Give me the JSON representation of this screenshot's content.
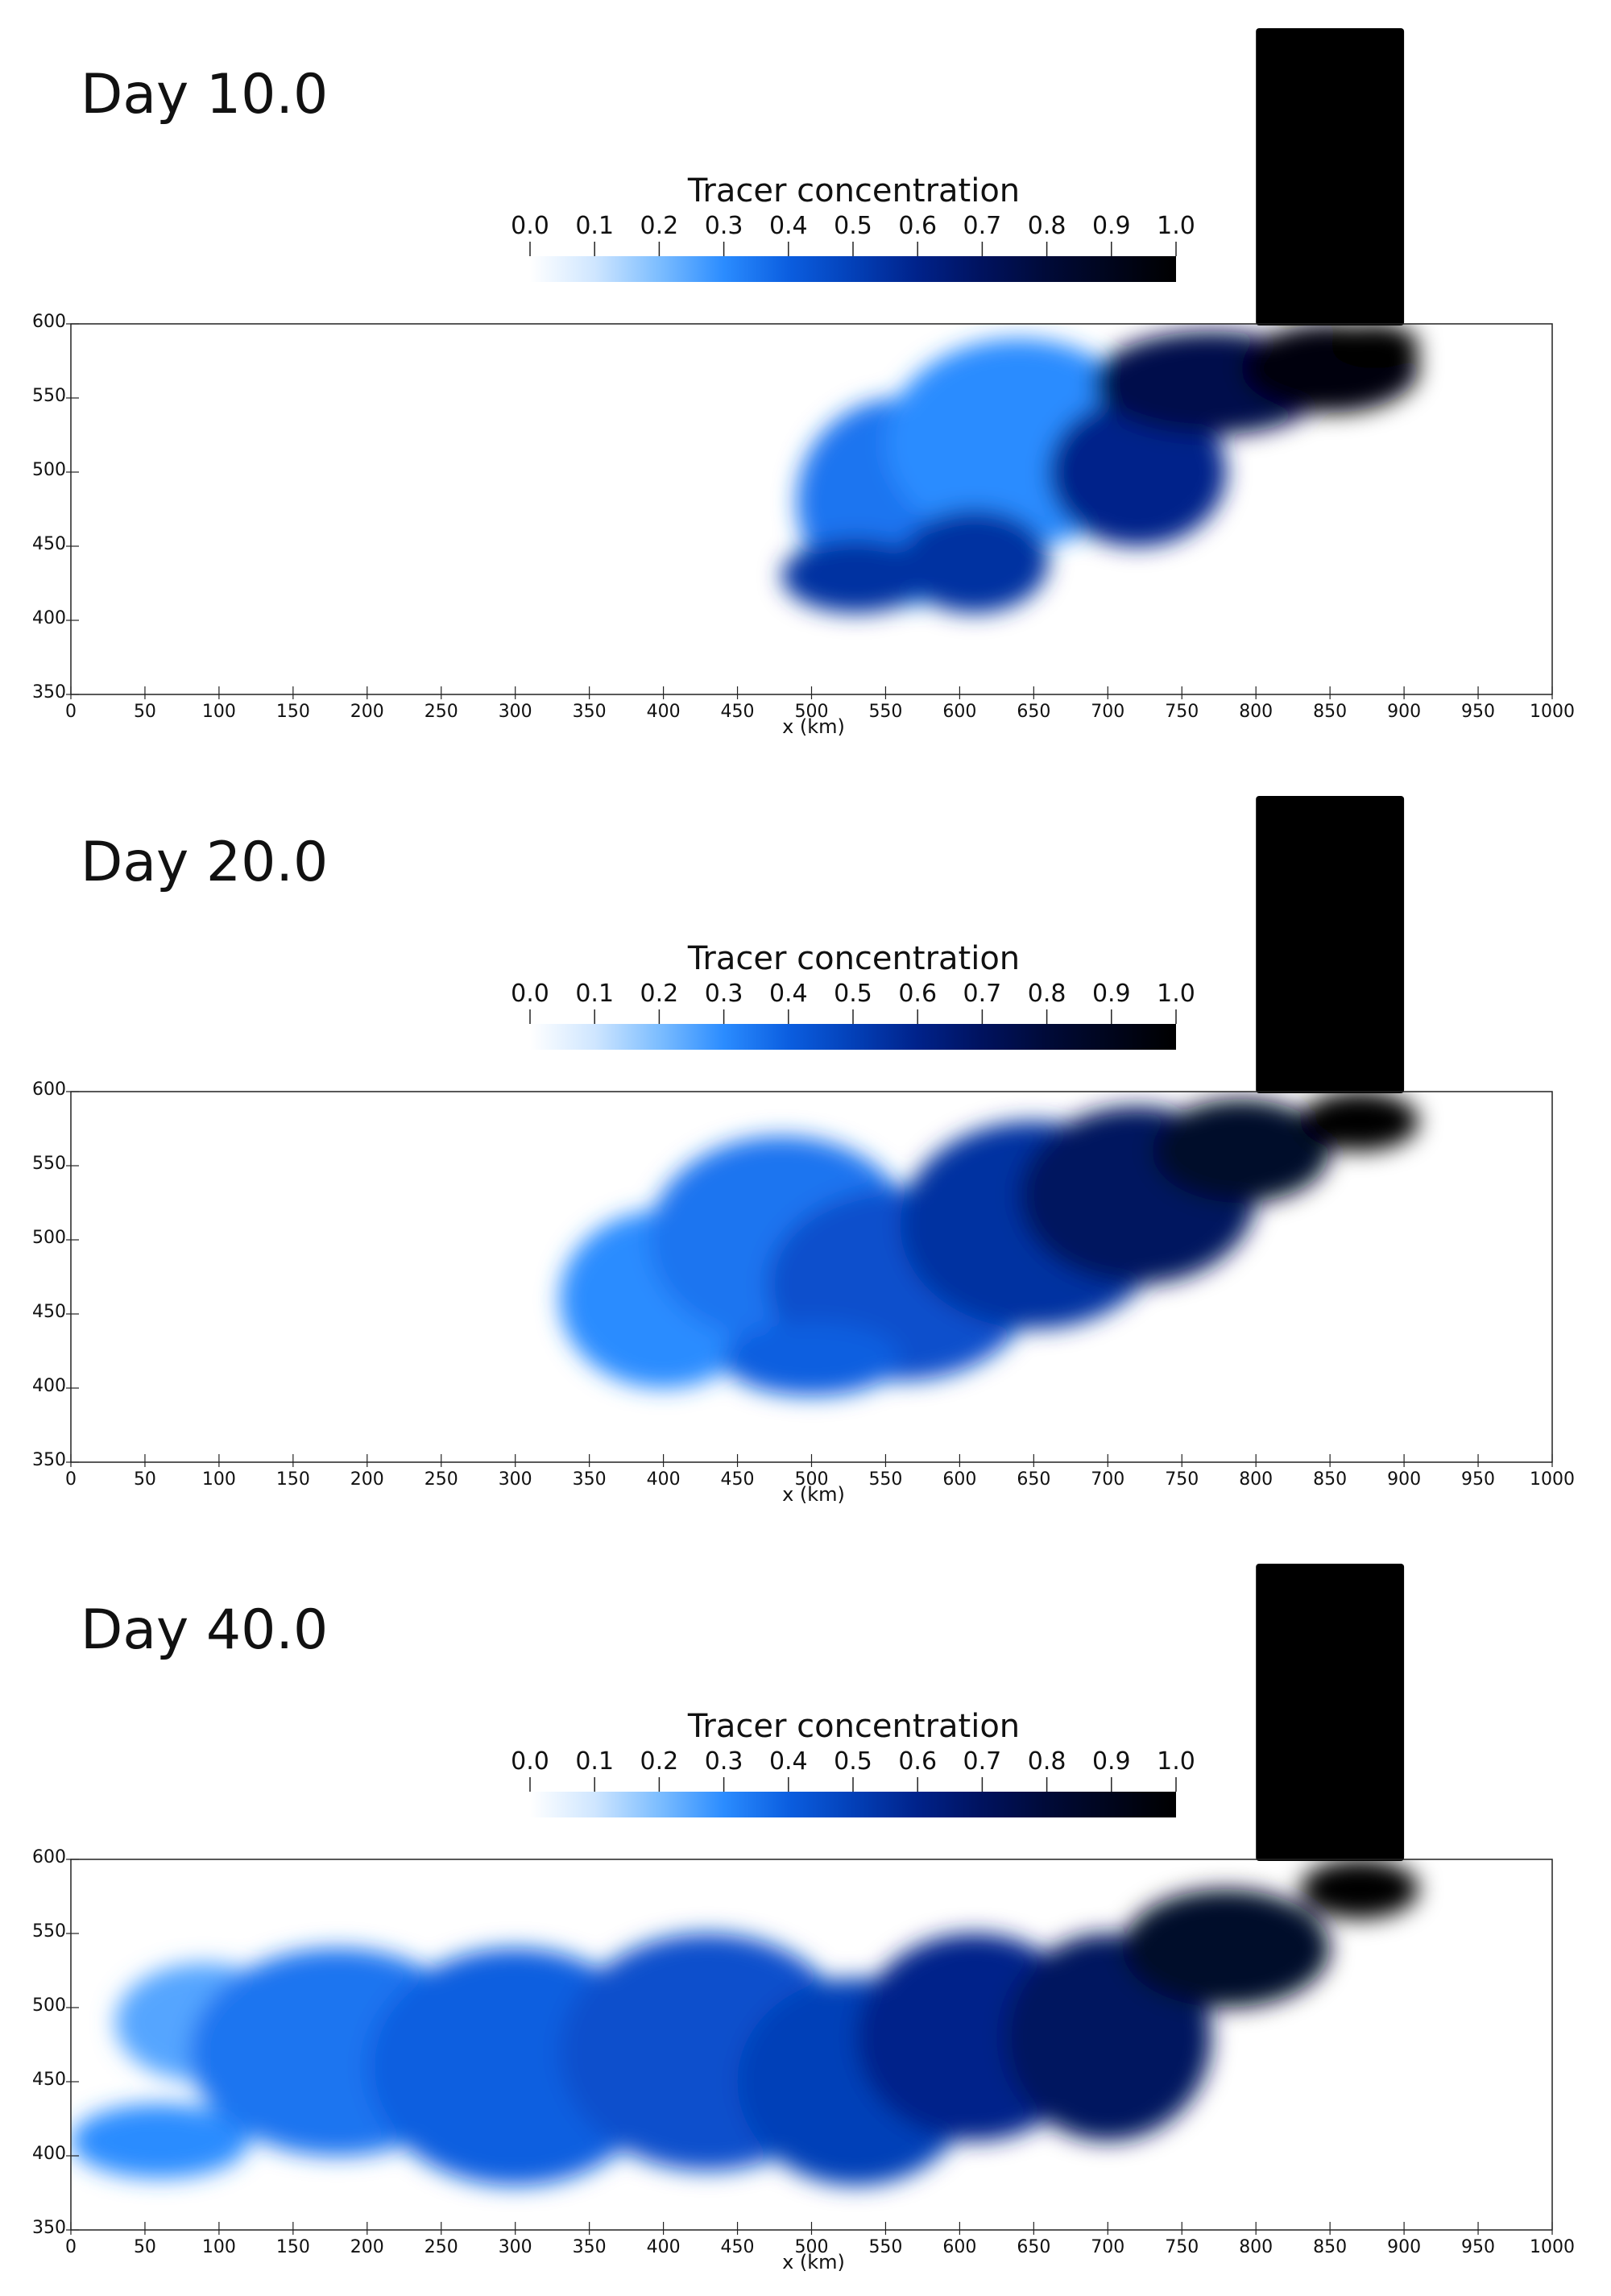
{
  "chart_data": [
    {
      "type": "heatmap",
      "title": "Day 10.0",
      "colorbar": {
        "title": "Tracer concentration",
        "range": [
          0.0,
          1.0
        ],
        "ticks": [
          "0.0",
          "0.1",
          "0.2",
          "0.3",
          "0.4",
          "0.5",
          "0.6",
          "0.7",
          "0.8",
          "0.9",
          "1.0"
        ],
        "colors": [
          "#ffffff",
          "#cfe6ff",
          "#7cbdff",
          "#2b8cff",
          "#0b5ee0",
          "#0340b8",
          "#00228a",
          "#00125e",
          "#000a38",
          "#00051c",
          "#000000"
        ]
      },
      "xlabel": "x (km)",
      "xlim": [
        0,
        1000
      ],
      "ylim": [
        350,
        600
      ],
      "xticks": [
        "0",
        "50",
        "100",
        "150",
        "200",
        "250",
        "300",
        "350",
        "400",
        "450",
        "500",
        "550",
        "600",
        "650",
        "700",
        "750",
        "800",
        "850",
        "900",
        "950",
        "1000"
      ],
      "yticks": [
        "350",
        "400",
        "450",
        "500",
        "550",
        "600"
      ],
      "inlet_channel": {
        "x": [
          800,
          900
        ],
        "y": [
          600,
          800
        ],
        "value": 1.0
      },
      "plume_blobs": [
        {
          "x": 560,
          "y": 480,
          "rx": 70,
          "ry": 70,
          "value": 0.35
        },
        {
          "x": 640,
          "y": 520,
          "rx": 90,
          "ry": 70,
          "value": 0.3
        },
        {
          "x": 610,
          "y": 440,
          "rx": 50,
          "ry": 35,
          "value": 0.55
        },
        {
          "x": 530,
          "y": 430,
          "rx": 50,
          "ry": 25,
          "value": 0.55
        },
        {
          "x": 720,
          "y": 500,
          "rx": 60,
          "ry": 50,
          "value": 0.6
        },
        {
          "x": 770,
          "y": 560,
          "rx": 80,
          "ry": 35,
          "value": 0.75
        },
        {
          "x": 850,
          "y": 570,
          "rx": 60,
          "ry": 30,
          "value": 0.95
        },
        {
          "x": 880,
          "y": 585,
          "rx": 30,
          "ry": 15,
          "value": 1.0
        }
      ]
    },
    {
      "type": "heatmap",
      "title": "Day 20.0",
      "colorbar": {
        "title": "Tracer concentration",
        "range": [
          0.0,
          1.0
        ],
        "ticks": [
          "0.0",
          "0.1",
          "0.2",
          "0.3",
          "0.4",
          "0.5",
          "0.6",
          "0.7",
          "0.8",
          "0.9",
          "1.0"
        ],
        "colors": [
          "#ffffff",
          "#cfe6ff",
          "#7cbdff",
          "#2b8cff",
          "#0b5ee0",
          "#0340b8",
          "#00228a",
          "#00125e",
          "#000a38",
          "#00051c",
          "#000000"
        ]
      },
      "xlabel": "x (km)",
      "xlim": [
        0,
        1000
      ],
      "ylim": [
        350,
        600
      ],
      "xticks": [
        "0",
        "50",
        "100",
        "150",
        "200",
        "250",
        "300",
        "350",
        "400",
        "450",
        "500",
        "550",
        "600",
        "650",
        "700",
        "750",
        "800",
        "850",
        "900",
        "950",
        "1000"
      ],
      "yticks": [
        "350",
        "400",
        "450",
        "500",
        "550",
        "600"
      ],
      "inlet_channel": {
        "x": [
          800,
          900
        ],
        "y": [
          600,
          800
        ],
        "value": 1.0
      },
      "plume_blobs": [
        {
          "x": 400,
          "y": 460,
          "rx": 70,
          "ry": 60,
          "value": 0.3
        },
        {
          "x": 480,
          "y": 500,
          "rx": 90,
          "ry": 70,
          "value": 0.35
        },
        {
          "x": 560,
          "y": 470,
          "rx": 90,
          "ry": 65,
          "value": 0.45
        },
        {
          "x": 500,
          "y": 420,
          "rx": 60,
          "ry": 25,
          "value": 0.4
        },
        {
          "x": 650,
          "y": 510,
          "rx": 90,
          "ry": 70,
          "value": 0.55
        },
        {
          "x": 720,
          "y": 530,
          "rx": 80,
          "ry": 60,
          "value": 0.7
        },
        {
          "x": 790,
          "y": 560,
          "rx": 60,
          "ry": 35,
          "value": 0.85
        },
        {
          "x": 870,
          "y": 580,
          "rx": 40,
          "ry": 20,
          "value": 1.0
        }
      ]
    },
    {
      "type": "heatmap",
      "title": "Day 40.0",
      "colorbar": {
        "title": "Tracer concentration",
        "range": [
          0.0,
          1.0
        ],
        "ticks": [
          "0.0",
          "0.1",
          "0.2",
          "0.3",
          "0.4",
          "0.5",
          "0.6",
          "0.7",
          "0.8",
          "0.9",
          "1.0"
        ],
        "colors": [
          "#ffffff",
          "#cfe6ff",
          "#7cbdff",
          "#2b8cff",
          "#0b5ee0",
          "#0340b8",
          "#00228a",
          "#00125e",
          "#000a38",
          "#00051c",
          "#000000"
        ]
      },
      "xlabel": "x (km)",
      "xlim": [
        0,
        1000
      ],
      "ylim": [
        350,
        600
      ],
      "xticks": [
        "0",
        "50",
        "100",
        "150",
        "200",
        "250",
        "300",
        "350",
        "400",
        "450",
        "500",
        "550",
        "600",
        "650",
        "700",
        "750",
        "800",
        "850",
        "900",
        "950",
        "1000"
      ],
      "yticks": [
        "350",
        "400",
        "450",
        "500",
        "550",
        "600"
      ],
      "inlet_channel": {
        "x": [
          800,
          900
        ],
        "y": [
          600,
          800
        ],
        "value": 1.0
      },
      "plume_blobs": [
        {
          "x": 60,
          "y": 410,
          "rx": 60,
          "ry": 25,
          "value": 0.3
        },
        {
          "x": 90,
          "y": 490,
          "rx": 60,
          "ry": 40,
          "value": 0.25
        },
        {
          "x": 180,
          "y": 470,
          "rx": 100,
          "ry": 70,
          "value": 0.35
        },
        {
          "x": 300,
          "y": 460,
          "rx": 100,
          "ry": 80,
          "value": 0.4
        },
        {
          "x": 430,
          "y": 470,
          "rx": 100,
          "ry": 80,
          "value": 0.45
        },
        {
          "x": 530,
          "y": 450,
          "rx": 80,
          "ry": 70,
          "value": 0.5
        },
        {
          "x": 610,
          "y": 480,
          "rx": 80,
          "ry": 70,
          "value": 0.6
        },
        {
          "x": 700,
          "y": 480,
          "rx": 70,
          "ry": 70,
          "value": 0.7
        },
        {
          "x": 780,
          "y": 540,
          "rx": 70,
          "ry": 40,
          "value": 0.85
        },
        {
          "x": 870,
          "y": 580,
          "rx": 40,
          "ry": 20,
          "value": 1.0
        }
      ]
    }
  ]
}
